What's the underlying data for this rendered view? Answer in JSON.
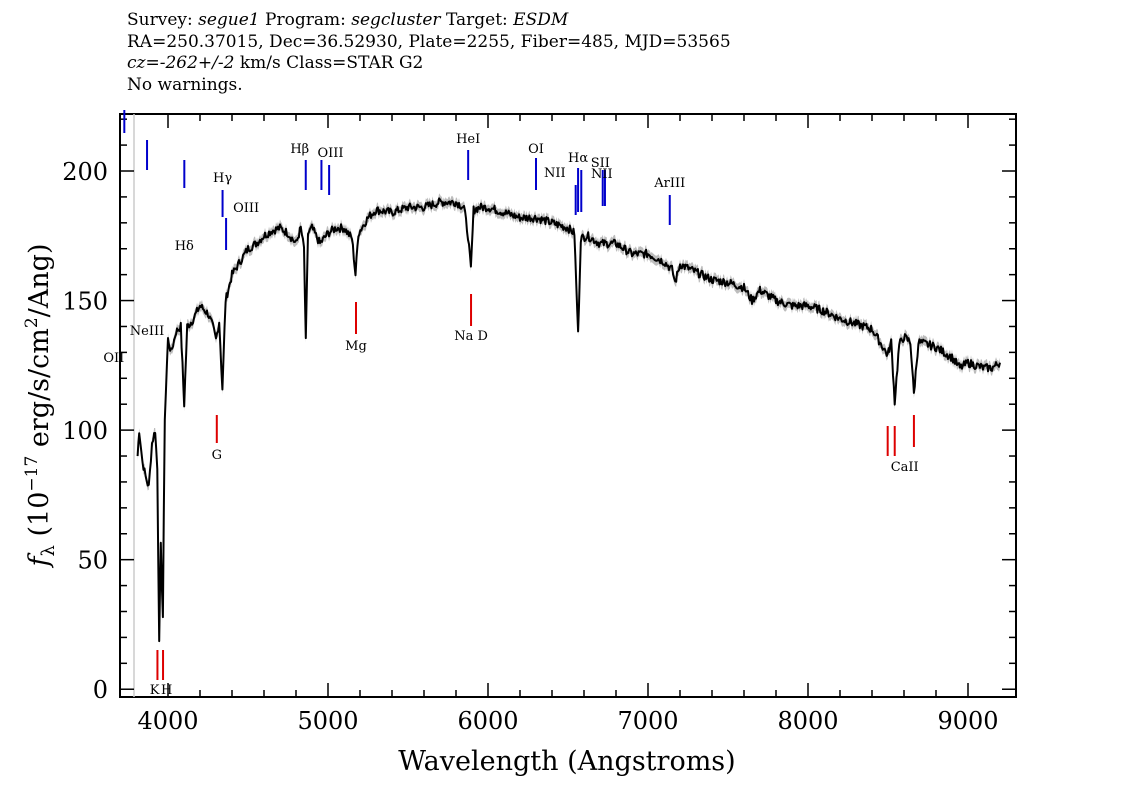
{
  "header": {
    "survey_label": "Survey:",
    "survey": "segue1",
    "program_label": "Program:",
    "program": "segcluster",
    "target_label": "Target:",
    "target": "ESDM",
    "line2": "RA=250.37015, Dec=36.52930, Plate=2255, Fiber=485, MJD=53565",
    "cz_label": "cz=",
    "cz_value": "-262+/-2",
    "cz_rest": " km/s Class=STAR G2",
    "warnings": "No warnings."
  },
  "chart_data": {
    "type": "line",
    "title": "",
    "xlabel": "Wavelength (Angstroms)",
    "ylabel": "f_λ (10^-17 erg/s/cm^2/Ang)",
    "xlim": [
      3700,
      9300
    ],
    "ylim": [
      -3,
      222
    ],
    "xticks": [
      4000,
      5000,
      6000,
      7000,
      8000,
      9000
    ],
    "yticks": [
      0,
      50,
      100,
      150,
      200
    ],
    "grid": false,
    "colors": {
      "flux": "#000000",
      "error_band": "#bdbdbd",
      "emission": "#0000cc",
      "absorption": "#dd0000"
    },
    "series": [
      {
        "x": [
          3810,
          3820,
          3840,
          3860,
          3880,
          3900,
          3920,
          3933,
          3945,
          3955,
          3968,
          3980,
          4000,
          4020,
          4050,
          4080,
          4101,
          4120,
          4150,
          4200,
          4250,
          4280,
          4300,
          4320,
          4340,
          4360,
          4400,
          4450,
          4500,
          4550,
          4600,
          4650,
          4700,
          4750,
          4800,
          4830,
          4850,
          4861,
          4875,
          4900,
          4950,
          5000,
          5050,
          5100,
          5150,
          5172,
          5190,
          5250,
          5300,
          5400,
          5500,
          5600,
          5700,
          5800,
          5850,
          5875,
          5893,
          5910,
          5950,
          6000,
          6100,
          6200,
          6300,
          6400,
          6500,
          6540,
          6563,
          6580,
          6620,
          6700,
          6800,
          6900,
          7000,
          7100,
          7150,
          7170,
          7200,
          7300,
          7400,
          7500,
          7600,
          7650,
          7700,
          7800,
          7900,
          8000,
          8100,
          8200,
          8300,
          8400,
          8498,
          8520,
          8542,
          8570,
          8600,
          8640,
          8662,
          8690,
          8750,
          8800,
          8850,
          8900,
          8950,
          9000,
          9050,
          9100,
          9150,
          9200
        ],
        "values": [
          90,
          100,
          88,
          82,
          78,
          95,
          100,
          85,
          20,
          55,
          28,
          105,
          135,
          130,
          138,
          140,
          110,
          140,
          142,
          148,
          145,
          140,
          135,
          142,
          116,
          150,
          160,
          165,
          170,
          172,
          175,
          177,
          178,
          176,
          172,
          178,
          170,
          134,
          176,
          178,
          172,
          176,
          178,
          178,
          174,
          160,
          176,
          182,
          185,
          184,
          186,
          186,
          188,
          188,
          186,
          175,
          162,
          185,
          186,
          186,
          184,
          182,
          182,
          180,
          178,
          176,
          137,
          174,
          175,
          172,
          172,
          168,
          168,
          165,
          162,
          157,
          164,
          161,
          158,
          157,
          155,
          150,
          154,
          150,
          148,
          148,
          146,
          143,
          141,
          139,
          129,
          134,
          111,
          133,
          136,
          134,
          114,
          134,
          133,
          132,
          130,
          128,
          124,
          126,
          125,
          124,
          124,
          126
        ]
      }
    ],
    "lines": [
      {
        "label": "OII",
        "x": 3727,
        "type": "emission"
      },
      {
        "label": "NeIII",
        "x": 3869,
        "type": "emission"
      },
      {
        "label": "Hδ",
        "x": 4102,
        "type": "emission"
      },
      {
        "label": "Hγ",
        "x": 4341,
        "type": "emission"
      },
      {
        "label": "OIII",
        "x": 4363,
        "type": "emission"
      },
      {
        "label": "Hβ",
        "x": 4861,
        "type": "emission"
      },
      {
        "label": "OIII",
        "x": 4959,
        "type": "emission"
      },
      {
        "label": "",
        "x": 5007,
        "type": "emission"
      },
      {
        "label": "HeI",
        "x": 5876,
        "type": "emission"
      },
      {
        "label": "OI",
        "x": 6300,
        "type": "emission"
      },
      {
        "label": "NII",
        "x": 6548,
        "type": "emission"
      },
      {
        "label": "Hα",
        "x": 6563,
        "type": "emission"
      },
      {
        "label": "",
        "x": 6583,
        "type": "emission"
      },
      {
        "label": "SII",
        "x": 6717,
        "type": "emission"
      },
      {
        "label": "NII",
        "x": 6731,
        "type": "emission"
      },
      {
        "label": "ArIII",
        "x": 7136,
        "type": "emission"
      },
      {
        "label": "K",
        "x": 3934,
        "type": "absorption"
      },
      {
        "label": "H",
        "x": 3969,
        "type": "absorption"
      },
      {
        "label": "G",
        "x": 4305,
        "type": "absorption"
      },
      {
        "label": "Mg",
        "x": 5175,
        "type": "absorption"
      },
      {
        "label": "Na D",
        "x": 5894,
        "type": "absorption"
      },
      {
        "label": "CaII",
        "x": 8498,
        "type": "absorption"
      },
      {
        "label": "",
        "x": 8542,
        "type": "absorption"
      },
      {
        "label": "",
        "x": 8662,
        "type": "absorption"
      }
    ]
  }
}
